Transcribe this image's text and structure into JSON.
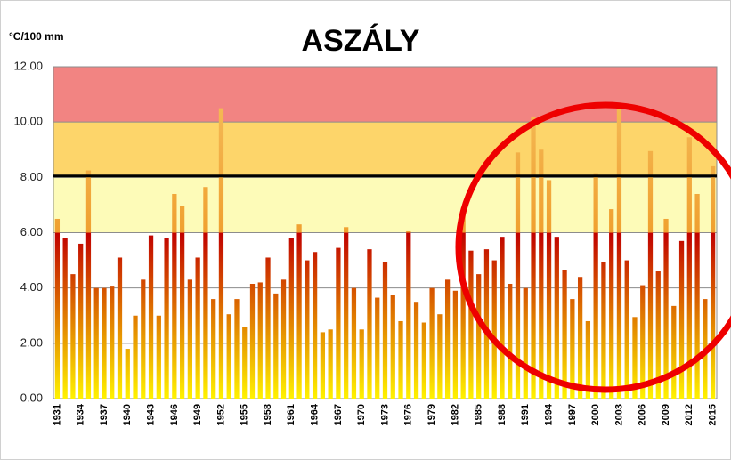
{
  "chart_data": {
    "type": "bar",
    "title": "ASZÁLY",
    "y_axis_label": "°C/100 mm",
    "categories": [
      1931,
      null,
      null,
      1934,
      null,
      null,
      1937,
      null,
      null,
      1940,
      null,
      null,
      1943,
      null,
      null,
      1946,
      null,
      null,
      1949,
      null,
      null,
      1952,
      null,
      null,
      1955,
      null,
      null,
      1958,
      null,
      null,
      1961,
      null,
      null,
      1964,
      null,
      null,
      1967,
      null,
      null,
      1970,
      null,
      null,
      1973,
      null,
      null,
      1976,
      null,
      null,
      1979,
      null,
      null,
      1982,
      null,
      null,
      1985,
      null,
      null,
      1988,
      null,
      null,
      1991,
      null,
      null,
      1994,
      null,
      null,
      1997,
      null,
      null,
      2000,
      null,
      null,
      2003,
      null,
      null,
      2006,
      null,
      null,
      2009,
      null,
      null,
      2012,
      null,
      null,
      2015
    ],
    "values": [
      6.5,
      5.8,
      4.5,
      5.6,
      8.25,
      4.0,
      4.0,
      4.05,
      5.1,
      1.8,
      3.0,
      4.3,
      5.9,
      3.0,
      5.8,
      7.4,
      6.95,
      4.3,
      5.1,
      7.65,
      3.6,
      10.5,
      3.05,
      3.6,
      2.6,
      4.15,
      4.2,
      5.1,
      3.8,
      4.3,
      5.8,
      6.3,
      5.0,
      5.3,
      2.4,
      2.5,
      5.45,
      6.2,
      4.0,
      2.5,
      5.4,
      3.65,
      4.95,
      3.75,
      2.8,
      6.05,
      3.5,
      2.75,
      4.0,
      3.05,
      4.3,
      3.9,
      6.9,
      5.35,
      4.5,
      5.4,
      5.0,
      5.85,
      4.15,
      8.9,
      4.0,
      10.2,
      9.0,
      7.9,
      5.85,
      4.65,
      3.6,
      4.4,
      2.8,
      8.15,
      4.95,
      6.85,
      10.5,
      5.0,
      2.95,
      4.1,
      8.95,
      4.6,
      6.5,
      3.35,
      5.7,
      9.45,
      7.4,
      3.6,
      8.4
    ],
    "bar_colors": [
      "#fff200",
      "#c00000",
      "#f0a030",
      "#f5c060"
    ],
    "ylim": [
      0,
      12
    ],
    "yticks": [
      {
        "value": 0,
        "label": "0.00"
      },
      {
        "value": 2,
        "label": "2.00"
      },
      {
        "value": 4,
        "label": "4.00"
      },
      {
        "value": 6,
        "label": "6.00"
      },
      {
        "value": 8,
        "label": "8.00"
      },
      {
        "value": 10,
        "label": "10.00"
      },
      {
        "value": 12,
        "label": "12.00"
      }
    ],
    "grid": true,
    "bands": [
      {
        "from": 10,
        "to": 12,
        "color": "#f28482"
      },
      {
        "from": 8,
        "to": 10,
        "color": "#fdd56a"
      },
      {
        "from": 6,
        "to": 8,
        "color": "#fdfbb8"
      }
    ],
    "threshold": 8.05
  }
}
